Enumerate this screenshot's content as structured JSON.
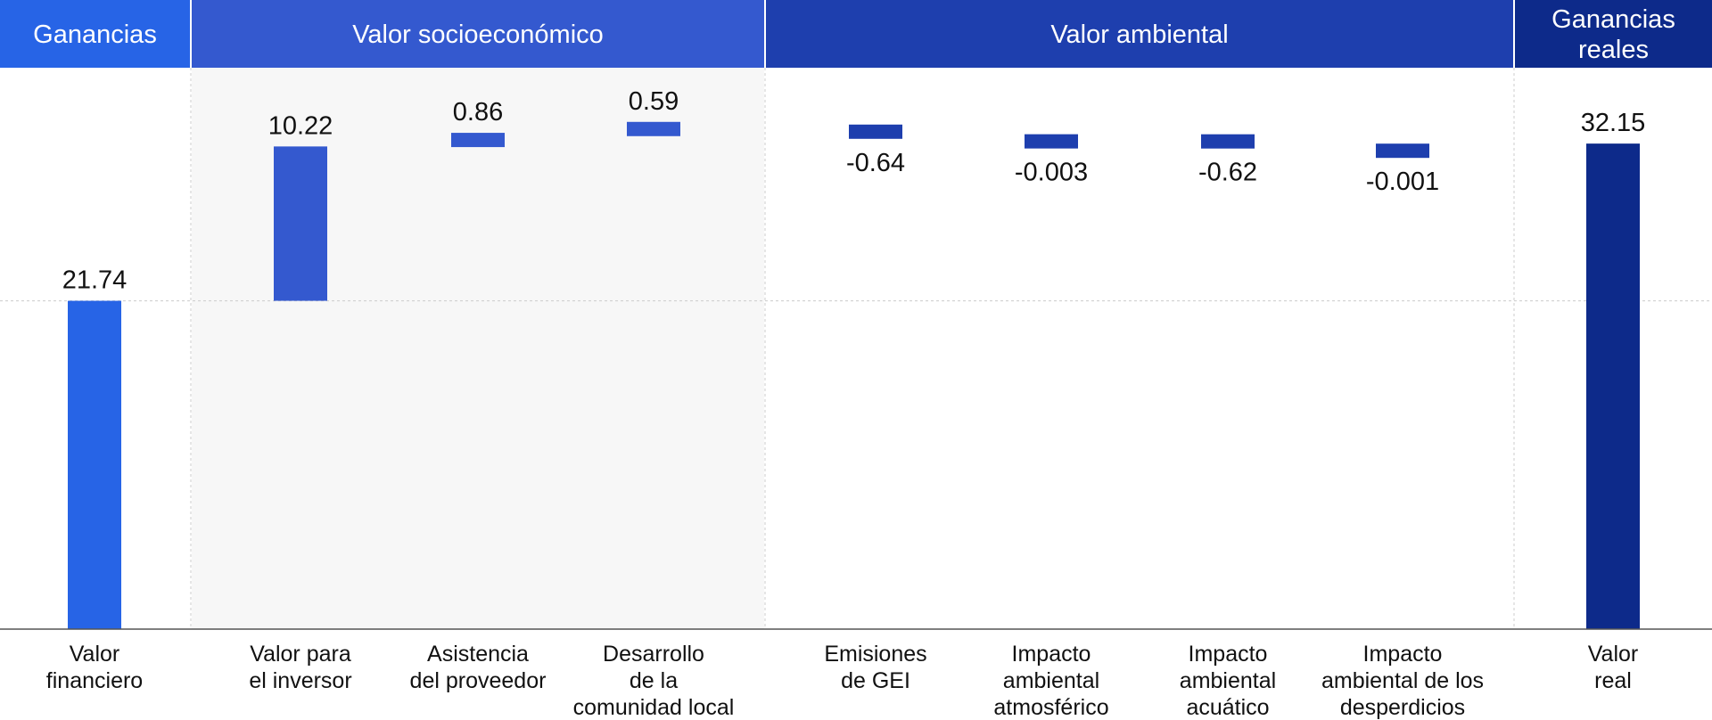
{
  "chart_data": {
    "type": "bar",
    "subtype": "waterfall",
    "title": "",
    "xlabel": "",
    "ylabel": "",
    "ylim": [
      0,
      38
    ],
    "grid": true,
    "colors": {
      "ganancias": "#2764e6",
      "socio": "#3459cf",
      "ambiental": "#1e3fae",
      "reales": "#0d2a8a",
      "shade": "#f7f7f7",
      "gridline": "#cccccc",
      "axis": "#555555"
    },
    "groups": [
      {
        "name": "Ganancias",
        "color": "ganancias",
        "shaded": false,
        "items": [
          0
        ]
      },
      {
        "name": "Valor socioeconómico",
        "color": "socio",
        "shaded": true,
        "items": [
          1,
          2,
          3
        ]
      },
      {
        "name": "Valor ambiental",
        "color": "ambiental",
        "shaded": false,
        "items": [
          4,
          5,
          6,
          7
        ]
      },
      {
        "name": "Ganancias reales",
        "color": "reales",
        "shaded": false,
        "items": [
          8
        ]
      }
    ],
    "categories": [
      "Valor financiero",
      "Valor para el inversor",
      "Asistencia del proveedor",
      "Desarrollo de la comunidad local",
      "Emisiones de GEI",
      "Impacto ambiental atmosférico",
      "Impacto ambiental acuático",
      "Impacto ambiental de los desperdicios",
      "Valor real"
    ],
    "category_lines": [
      [
        "Valor",
        "financiero"
      ],
      [
        "Valor para",
        "el inversor"
      ],
      [
        "Asistencia",
        "del proveedor"
      ],
      [
        "Desarrollo",
        "de la",
        "comunidad local"
      ],
      [
        "Emisiones",
        "de GEI"
      ],
      [
        "Impacto",
        "ambiental",
        "atmosférico"
      ],
      [
        "Impacto",
        "ambiental",
        "acuático"
      ],
      [
        "Impacto",
        "ambiental de los",
        "desperdicios"
      ],
      [
        "Valor",
        "real"
      ]
    ],
    "values": [
      21.74,
      10.22,
      0.86,
      0.59,
      -0.64,
      -0.003,
      -0.62,
      -0.001,
      32.15
    ],
    "value_labels": [
      "21.74",
      "10.22",
      "0.86",
      "0.59",
      "-0.64",
      "-0.003",
      "-0.62",
      "-0.001",
      "32.15"
    ],
    "bar_kind": [
      "total",
      "delta",
      "delta",
      "delta",
      "delta",
      "delta",
      "delta",
      "delta",
      "total"
    ]
  }
}
